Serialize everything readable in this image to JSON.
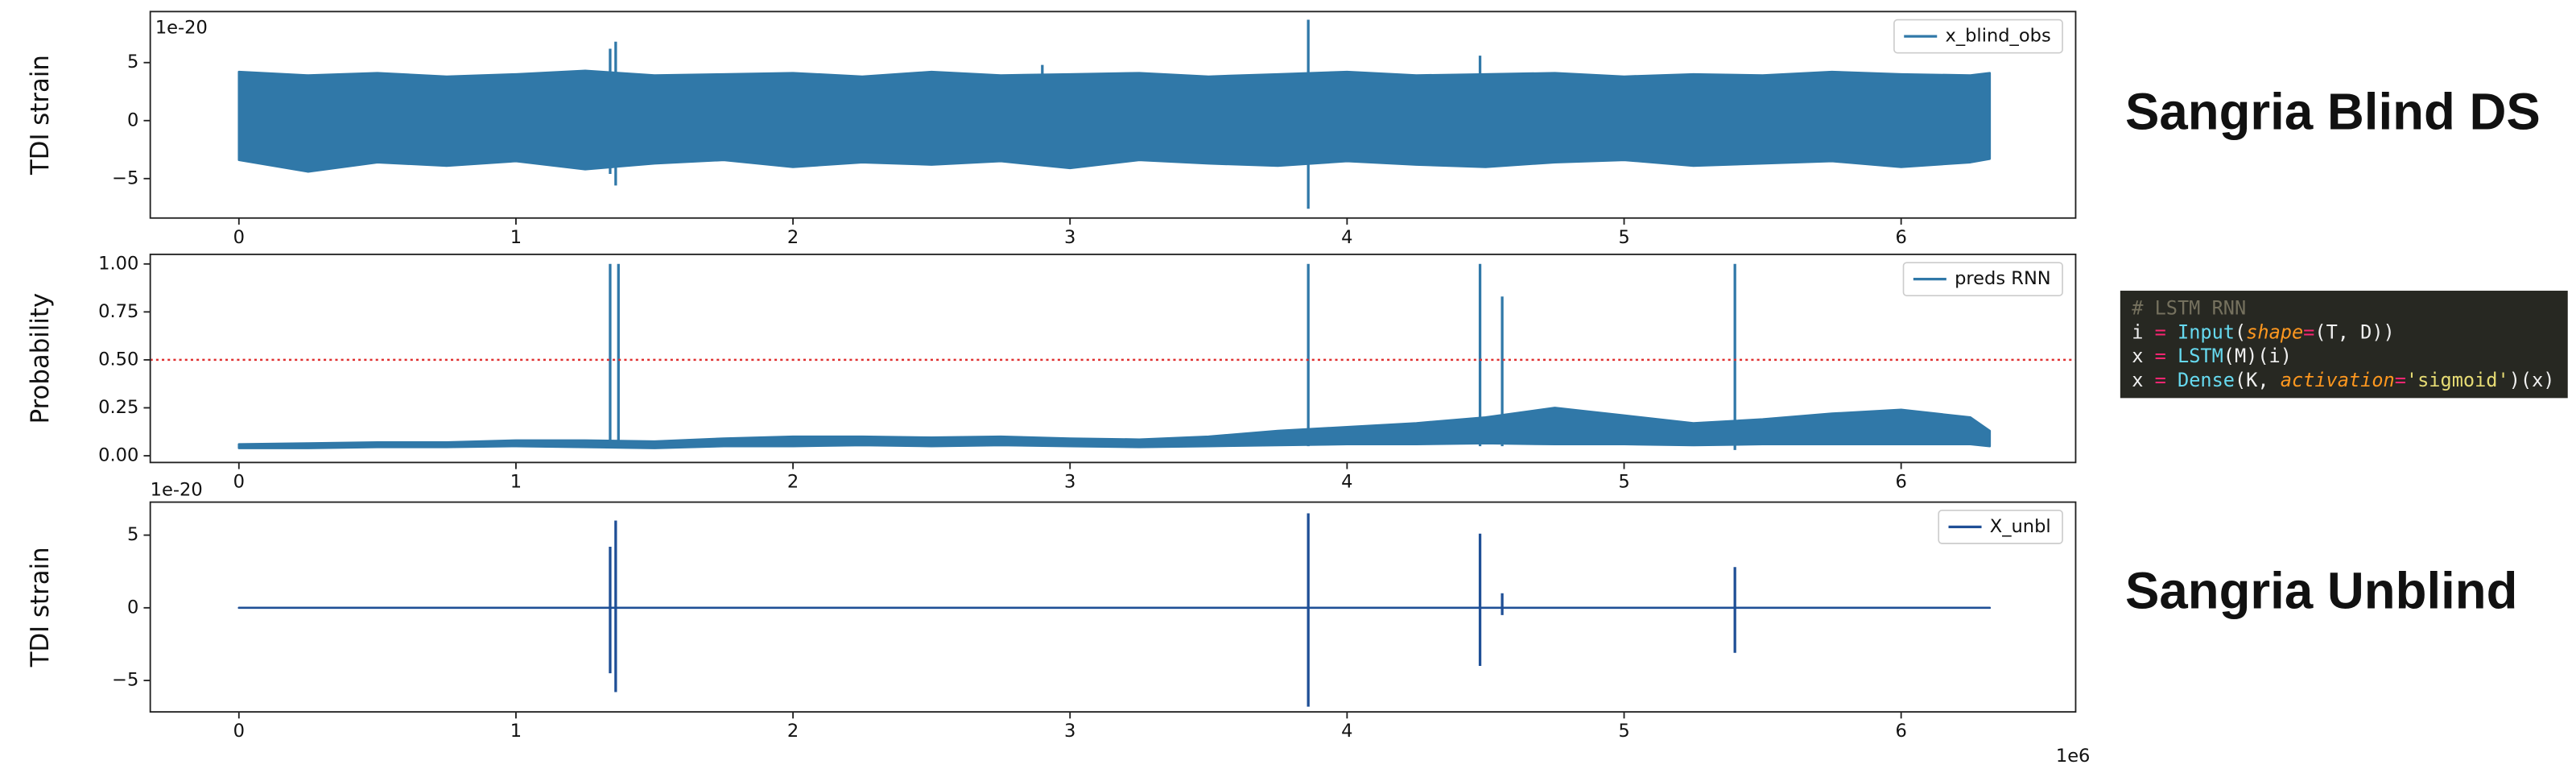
{
  "chart_data": [
    {
      "type": "line",
      "ylabel": "TDI strain",
      "y_offset_label": "1e-20",
      "xlim": [
        -0.32,
        6.63
      ],
      "ylim": [
        -8.4,
        9.4
      ],
      "xticks": [
        0,
        1,
        2,
        3,
        4,
        5,
        6
      ],
      "yticks": [
        {
          "value": -5,
          "label": "−5"
        },
        0,
        5
      ],
      "legend": "upper right",
      "series": [
        {
          "name": "x_blind_obs",
          "color": "#3078a8",
          "x": [
            0,
            0.25,
            0.5,
            0.75,
            1,
            1.25,
            1.5,
            1.75,
            2,
            2.25,
            2.5,
            2.75,
            3,
            3.25,
            3.5,
            3.75,
            4,
            4.25,
            4.5,
            4.75,
            5,
            5.25,
            5.5,
            5.75,
            6,
            6.25,
            6.32
          ],
          "values": [
            4.2,
            3.9,
            4.1,
            3.8,
            4.0,
            4.3,
            3.9,
            4.0,
            4.1,
            3.8,
            4.2,
            3.9,
            4.0,
            4.1,
            3.8,
            4.0,
            4.2,
            3.9,
            4.0,
            4.1,
            3.8,
            4.0,
            3.9,
            4.2,
            4.0,
            3.9,
            4.1
          ],
          "lower": [
            -3.4,
            -4.4,
            -3.6,
            -3.9,
            -3.5,
            -4.2,
            -3.7,
            -3.4,
            -4.0,
            -3.6,
            -3.8,
            -3.5,
            -4.1,
            -3.4,
            -3.7,
            -3.9,
            -3.5,
            -3.8,
            -4.0,
            -3.6,
            -3.4,
            -3.9,
            -3.7,
            -3.5,
            -4.0,
            -3.6,
            -3.3
          ],
          "spike_x": [
            1.34,
            1.36,
            2.9,
            3.86,
            4.48
          ],
          "spike_high": [
            6.2,
            6.8,
            4.8,
            8.7,
            5.6
          ],
          "spike_low": [
            -4.6,
            -5.6,
            -3.3,
            -7.6,
            -3.5
          ]
        }
      ]
    },
    {
      "type": "line",
      "ylabel": "Probability",
      "xlim": [
        -0.32,
        6.63
      ],
      "ylim": [
        -0.035,
        1.05
      ],
      "xticks": [
        0,
        1,
        2,
        3,
        4,
        5,
        6
      ],
      "yticks": [
        {
          "value": 0,
          "label": "0.00"
        },
        {
          "value": 0.25,
          "label": "0.25"
        },
        {
          "value": 0.5,
          "label": "0.50"
        },
        {
          "value": 0.75,
          "label": "0.75"
        },
        {
          "value": 1,
          "label": "1.00"
        }
      ],
      "legend": "upper right",
      "threshold": 0.5,
      "threshold_color": "#e03030",
      "series": [
        {
          "name": "preds RNN",
          "color": "#3078a8",
          "x": [
            0,
            0.25,
            0.5,
            0.75,
            1,
            1.25,
            1.5,
            1.75,
            2,
            2.25,
            2.5,
            2.75,
            3,
            3.25,
            3.5,
            3.75,
            4,
            4.25,
            4.5,
            4.75,
            5,
            5.25,
            5.5,
            5.75,
            6,
            6.25,
            6.32
          ],
          "values": [
            0.06,
            0.065,
            0.07,
            0.07,
            0.08,
            0.08,
            0.075,
            0.09,
            0.1,
            0.1,
            0.095,
            0.1,
            0.09,
            0.085,
            0.1,
            0.13,
            0.15,
            0.17,
            0.2,
            0.25,
            0.21,
            0.17,
            0.19,
            0.22,
            0.24,
            0.2,
            0.13
          ],
          "lower": [
            0.04,
            0.04,
            0.045,
            0.045,
            0.05,
            0.045,
            0.04,
            0.05,
            0.05,
            0.055,
            0.05,
            0.055,
            0.05,
            0.045,
            0.05,
            0.055,
            0.06,
            0.06,
            0.065,
            0.06,
            0.06,
            0.055,
            0.06,
            0.06,
            0.06,
            0.06,
            0.05
          ],
          "spike_x": [
            1.34,
            1.37,
            3.86,
            4.48,
            4.56,
            5.4
          ],
          "spike_high": [
            1.0,
            1.0,
            1.0,
            1.0,
            0.83,
            1.0
          ],
          "spike_low": [
            0.04,
            0.04,
            0.05,
            0.05,
            0.05,
            0.03
          ]
        }
      ]
    },
    {
      "type": "line",
      "ylabel": "TDI strain",
      "y_offset_label": "1e-20",
      "x_offset_label": "1e6",
      "xlim": [
        -0.32,
        6.63
      ],
      "ylim": [
        -7.16,
        7.27
      ],
      "xticks": [
        0,
        1,
        2,
        3,
        4,
        5,
        6
      ],
      "yticks": [
        {
          "value": -5,
          "label": "−5"
        },
        0,
        5
      ],
      "legend": "upper right",
      "series": [
        {
          "name": "X_unbl",
          "color": "#1f4f96",
          "x": [
            0,
            6.32
          ],
          "values": [
            0,
            0
          ],
          "lower": [
            0,
            0
          ],
          "spike_x": [
            1.34,
            1.36,
            3.86,
            4.48,
            4.56,
            5.4
          ],
          "spike_high": [
            4.2,
            6.0,
            6.5,
            5.1,
            1.0,
            2.8
          ],
          "spike_low": [
            -4.5,
            -5.8,
            -6.8,
            -4.0,
            -0.5,
            -3.1
          ]
        }
      ]
    }
  ],
  "labels": {
    "blind": "Sangria Blind DS",
    "unblind": "Sangria Unblind"
  },
  "code": {
    "lines": [
      [
        {
          "text": "# LSTM RNN",
          "color": "#75715e"
        }
      ],
      [
        {
          "text": "i",
          "color": "#f0f0f0"
        },
        {
          "text": " = ",
          "color": "#f92672"
        },
        {
          "text": "Input",
          "color": "#66d9ef"
        },
        {
          "text": "(",
          "color": "#f0f0f0"
        },
        {
          "text": "shape",
          "color": "#fd971f"
        },
        {
          "text": "=",
          "color": "#f92672"
        },
        {
          "text": "(T, D))",
          "color": "#f0f0f0"
        }
      ],
      [
        {
          "text": "x",
          "color": "#f0f0f0"
        },
        {
          "text": " = ",
          "color": "#f92672"
        },
        {
          "text": "LSTM",
          "color": "#66d9ef"
        },
        {
          "text": "(M)(i)",
          "color": "#f0f0f0"
        }
      ],
      [
        {
          "text": "x",
          "color": "#f0f0f0"
        },
        {
          "text": " = ",
          "color": "#f92672"
        },
        {
          "text": "Dense",
          "color": "#66d9ef"
        },
        {
          "text": "(K, ",
          "color": "#f0f0f0"
        },
        {
          "text": "activation",
          "color": "#fd971f"
        },
        {
          "text": "=",
          "color": "#f92672"
        },
        {
          "text": "'sigmoid'",
          "color": "#e6db74"
        },
        {
          "text": ")(x)",
          "color": "#f0f0f0"
        }
      ]
    ]
  }
}
